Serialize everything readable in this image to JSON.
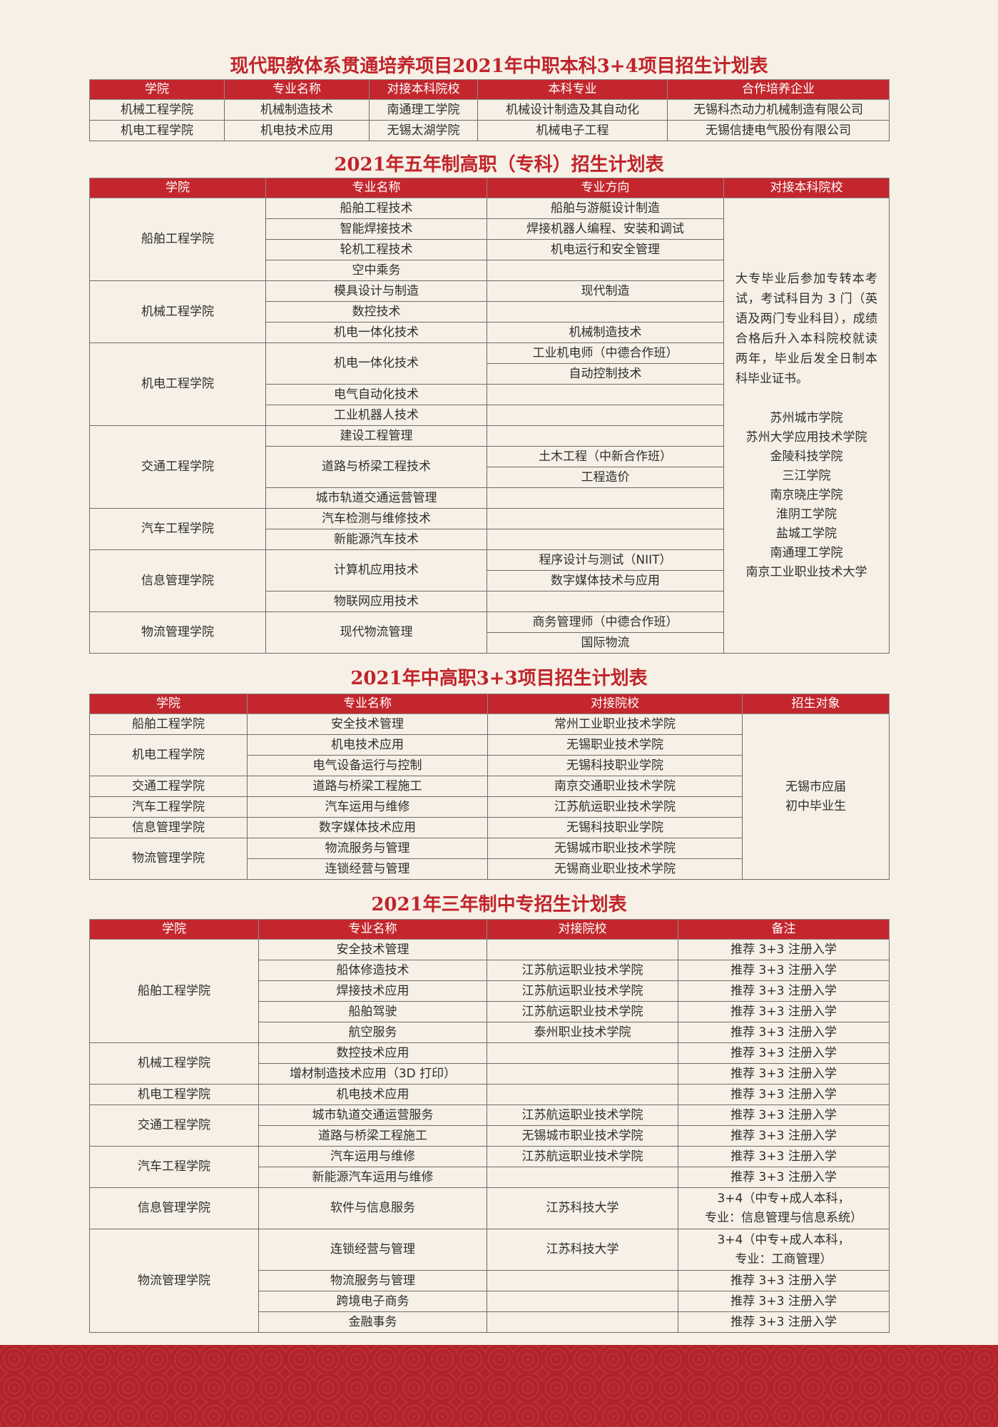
{
  "three_plus_four": {
    "title": "现代职教体系贯通培养项目2021年中职本科3+4项目招生计划表",
    "headers": [
      "学院",
      "专业名称",
      "对接本科院校",
      "本科专业",
      "合作培养企业"
    ],
    "rows": [
      [
        "机械工程学院",
        "机械制造技术",
        "南通理工学院",
        "机械设计制造及其自动化",
        "无锡科杰动力机械制造有限公司"
      ],
      [
        "机电工程学院",
        "机电技术应用",
        "无锡太湖学院",
        "机械电子工程",
        "无锡信捷电气股份有限公司"
      ]
    ]
  },
  "five_year": {
    "title": "2021年五年制高职（专科）招生计划表",
    "headers": [
      "学院",
      "专业名称",
      "专业方向",
      "对接本科院校"
    ],
    "groups": [
      {
        "college": "船舶工程学院",
        "majors": [
          {
            "name": "船舶工程技术",
            "directions": [
              "船舶与游艇设计制造"
            ]
          },
          {
            "name": "智能焊接技术",
            "directions": [
              "焊接机器人编程、安装和调试"
            ]
          },
          {
            "name": "轮机工程技术",
            "directions": [
              "机电运行和安全管理"
            ]
          },
          {
            "name": "空中乘务",
            "directions": []
          }
        ]
      },
      {
        "college": "机械工程学院",
        "majors": [
          {
            "name": "模具设计与制造",
            "directions": [
              "现代制造"
            ]
          },
          {
            "name": "数控技术",
            "directions": []
          },
          {
            "name": "机电一体化技术",
            "directions": [
              "机械制造技术"
            ]
          }
        ]
      },
      {
        "college": "机电工程学院",
        "majors": [
          {
            "name": "机电一体化技术",
            "directions": [
              "工业机电师（中德合作班）",
              "自动控制技术"
            ]
          },
          {
            "name": "电气自动化技术",
            "directions": []
          },
          {
            "name": "工业机器人技术",
            "directions": []
          }
        ]
      },
      {
        "college": "交通工程学院",
        "majors": [
          {
            "name": "建设工程管理",
            "directions": []
          },
          {
            "name": "道路与桥梁工程技术",
            "directions": [
              "土木工程（中新合作班）",
              "工程造价"
            ]
          },
          {
            "name": "城市轨道交通运营管理",
            "directions": []
          }
        ]
      },
      {
        "college": "汽车工程学院",
        "majors": [
          {
            "name": "汽车检测与维修技术",
            "directions": []
          },
          {
            "name": "新能源汽车技术",
            "directions": []
          }
        ]
      },
      {
        "college": "信息管理学院",
        "majors": [
          {
            "name": "计算机应用技术",
            "directions": [
              "程序设计与测试（NIIT）",
              "数字媒体技术与应用"
            ]
          },
          {
            "name": "物联网应用技术",
            "directions": []
          }
        ]
      },
      {
        "college": "物流管理学院",
        "majors": [
          {
            "name": "现代物流管理",
            "directions": [
              "商务管理师（中德合作班）",
              "国际物流"
            ]
          }
        ]
      }
    ],
    "note": "大专毕业后参加专转本考试，考试科目为 3 门（英语及两门专业科目），成绩合格后升入本科院校就读两年，毕业后发全日制本科毕业证书。",
    "universities": [
      "苏州城市学院",
      "苏州大学应用技术学院",
      "金陵科技学院",
      "三江学院",
      "南京晓庄学院",
      "淮阴工学院",
      "盐城工学院",
      "南通理工学院",
      "南京工业职业技术大学"
    ]
  },
  "three_plus_three": {
    "title": "2021年中高职3+3项目招生计划表",
    "headers": [
      "学院",
      "专业名称",
      "对接院校",
      "招生对象"
    ],
    "groups": [
      {
        "college": "船舶工程学院",
        "majors": [
          {
            "name": "安全技术管理",
            "school": "常州工业职业技术学院"
          }
        ]
      },
      {
        "college": "机电工程学院",
        "majors": [
          {
            "name": "机电技术应用",
            "school": "无锡职业技术学院"
          },
          {
            "name": "电气设备运行与控制",
            "school": "无锡科技职业学院"
          }
        ]
      },
      {
        "college": "交通工程学院",
        "majors": [
          {
            "name": "道路与桥梁工程施工",
            "school": "南京交通职业技术学院"
          }
        ]
      },
      {
        "college": "汽车工程学院",
        "majors": [
          {
            "name": "汽车运用与维修",
            "school": "江苏航运职业技术学院"
          }
        ]
      },
      {
        "college": "信息管理学院",
        "majors": [
          {
            "name": "数字媒体技术应用",
            "school": "无锡科技职业学院"
          }
        ]
      },
      {
        "college": "物流管理学院",
        "majors": [
          {
            "name": "物流服务与管理",
            "school": "无锡城市职业技术学院"
          },
          {
            "name": "连锁经营与管理",
            "school": "无锡商业职业技术学院"
          }
        ]
      }
    ],
    "target": [
      "无锡市应届",
      "初中毕业生"
    ]
  },
  "three_year": {
    "title": "2021年三年制中专招生计划表",
    "headers": [
      "学院",
      "专业名称",
      "对接院校",
      "备注"
    ],
    "groups": [
      {
        "college": "船舶工程学院",
        "majors": [
          {
            "name": "安全技术管理",
            "note": [
              "推荐 3+3 注册入学"
            ]
          },
          {
            "name": "船体修造技术",
            "school": "江苏航运职业技术学院",
            "note": [
              "推荐 3+3 注册入学"
            ]
          },
          {
            "name": "焊接技术应用",
            "school": "江苏航运职业技术学院",
            "note": [
              "推荐 3+3 注册入学"
            ]
          },
          {
            "name": "船舶驾驶",
            "school": "江苏航运职业技术学院",
            "note": [
              "推荐 3+3 注册入学"
            ]
          },
          {
            "name": "航空服务",
            "school": "泰州职业技术学院",
            "note": [
              "推荐 3+3 注册入学"
            ]
          }
        ]
      },
      {
        "college": "机械工程学院",
        "majors": [
          {
            "name": "数控技术应用",
            "note": [
              "推荐 3+3 注册入学"
            ]
          },
          {
            "name": "增材制造技术应用（3D 打印）",
            "note": [
              "推荐 3+3 注册入学"
            ]
          }
        ]
      },
      {
        "college": "机电工程学院",
        "majors": [
          {
            "name": "机电技术应用",
            "note": [
              "推荐 3+3 注册入学"
            ]
          }
        ]
      },
      {
        "college": "交通工程学院",
        "majors": [
          {
            "name": "城市轨道交通运营服务",
            "school": "江苏航运职业技术学院",
            "note": [
              "推荐 3+3 注册入学"
            ]
          },
          {
            "name": "道路与桥梁工程施工",
            "school": "无锡城市职业技术学院",
            "note": [
              "推荐 3+3 注册入学"
            ]
          }
        ]
      },
      {
        "college": "汽车工程学院",
        "majors": [
          {
            "name": "汽车运用与维修",
            "school": "江苏航运职业技术学院",
            "note": [
              "推荐 3+3 注册入学"
            ]
          },
          {
            "name": "新能源汽车运用与维修",
            "note": [
              "推荐 3+3 注册入学"
            ]
          }
        ]
      },
      {
        "college": "信息管理学院",
        "majors": [
          {
            "name": "软件与信息服务",
            "school": "江苏科技大学",
            "note": [
              "3+4（中专+成人本科，",
              "专业：信息管理与信息系统）"
            ]
          }
        ]
      },
      {
        "college": "物流管理学院",
        "majors": [
          {
            "name": "连锁经营与管理",
            "school": "江苏科技大学",
            "note": [
              "3+4（中专+成人本科，",
              "专业：工商管理）"
            ]
          },
          {
            "name": "物流服务与管理",
            "note": [
              "推荐 3+3 注册入学"
            ]
          },
          {
            "name": "跨境电子商务",
            "note": [
              "推荐 3+3 注册入学"
            ]
          },
          {
            "name": "金融事务",
            "note": [
              "推荐 3+3 注册入学"
            ]
          }
        ]
      }
    ]
  }
}
